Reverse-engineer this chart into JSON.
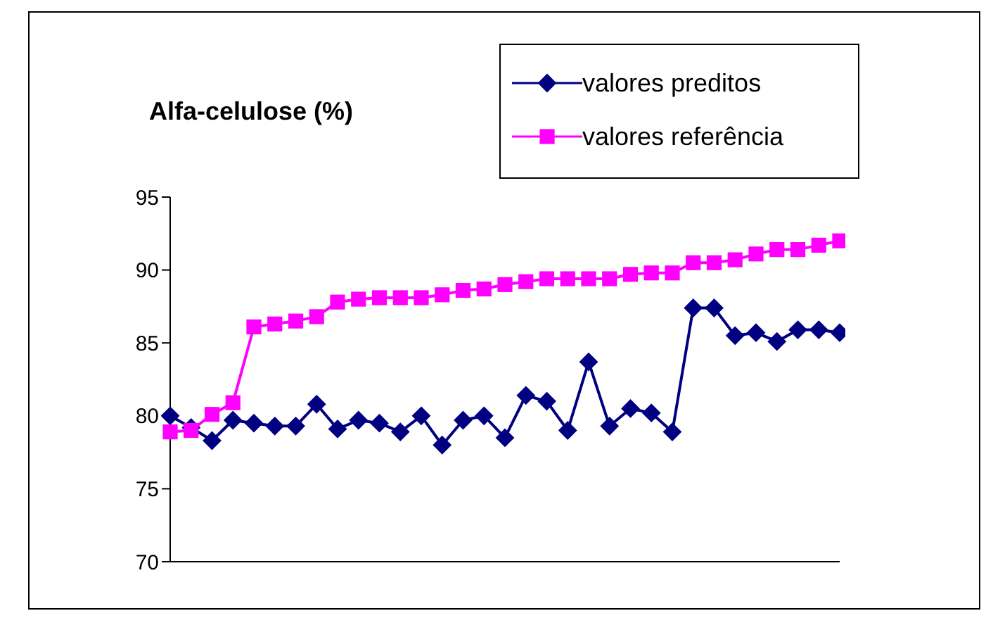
{
  "chart_data": {
    "type": "line",
    "title": "Alfa-celulose (%)",
    "categories": [
      null,
      null,
      null,
      null,
      null,
      null,
      null,
      null,
      null,
      null,
      null,
      null,
      null,
      null,
      null,
      null,
      null,
      null,
      null,
      null,
      null,
      null,
      null,
      null,
      null,
      null,
      null,
      null,
      null,
      null,
      null,
      null,
      null
    ],
    "series": [
      {
        "name": "valores preditos",
        "color": "#000080",
        "marker": "diamond",
        "values": [
          80.0,
          79.2,
          78.3,
          79.7,
          79.5,
          79.3,
          79.3,
          80.8,
          79.1,
          79.7,
          79.5,
          78.9,
          80.0,
          78.0,
          79.7,
          80.0,
          78.5,
          81.4,
          81.0,
          79.0,
          83.7,
          79.3,
          80.5,
          80.2,
          78.9,
          87.4,
          87.4,
          85.5,
          85.7,
          85.1,
          85.9,
          85.9,
          85.7
        ]
      },
      {
        "name": "valores referência",
        "color": "#ff00ff",
        "marker": "square",
        "values": [
          78.9,
          79.0,
          80.1,
          80.9,
          86.1,
          86.3,
          86.5,
          86.8,
          87.8,
          88.0,
          88.1,
          88.1,
          88.1,
          88.3,
          88.6,
          88.7,
          89.0,
          89.2,
          89.4,
          89.4,
          89.4,
          89.4,
          89.7,
          89.8,
          89.8,
          90.5,
          90.5,
          90.7,
          91.1,
          91.4,
          91.4,
          91.7,
          92.0
        ]
      }
    ],
    "ylim": [
      70,
      95
    ],
    "yticks": [
      70,
      75,
      80,
      85,
      90,
      95
    ],
    "grid": false,
    "legend": "top right",
    "tick_labels": "y"
  }
}
